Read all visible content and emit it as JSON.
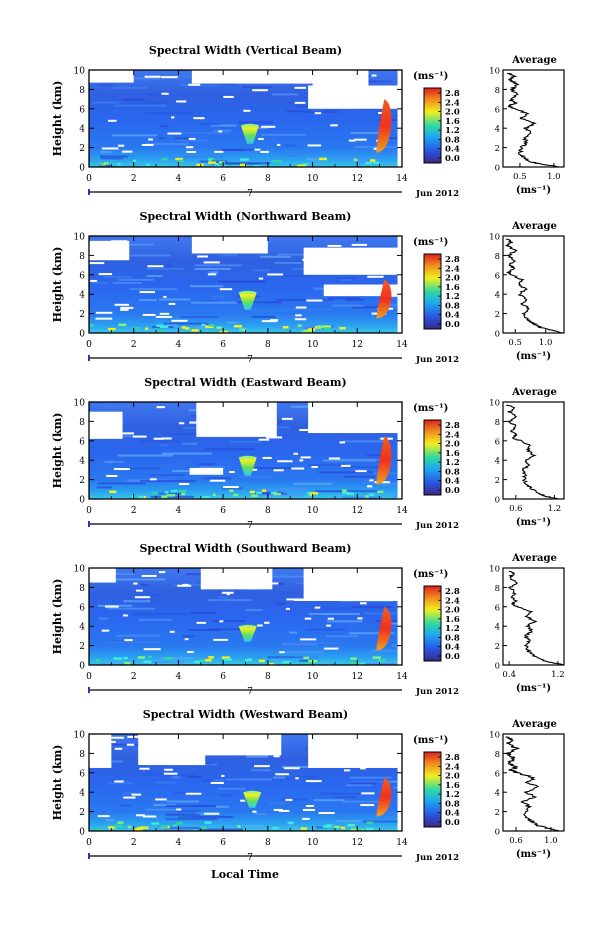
{
  "figure": {
    "xlabel": "Local Time",
    "date_label": "Jun 2012",
    "day_label": "7",
    "avg_title": "Average",
    "unit_label": "(ms⁻¹)",
    "ylabel": "Height (km)"
  },
  "chart_data": [
    {
      "type": "heatmap",
      "title": "Spectral Width (Vertical Beam)",
      "xlabel": "Local Time",
      "ylabel": "Height (km)",
      "xlim": [
        0,
        14
      ],
      "ylim": [
        0,
        10
      ],
      "x_ticks": [
        "0",
        "2",
        "4",
        "6",
        "8",
        "10",
        "12",
        "14"
      ],
      "y_ticks": [
        "0",
        "2",
        "4",
        "6",
        "8",
        "10"
      ],
      "colorbar_ticks": [
        "0.0",
        "0.4",
        "0.8",
        "1.2",
        "1.6",
        "2.0",
        "2.4",
        "2.8"
      ],
      "colorbar_unit": "(ms⁻¹)",
      "colormap": [
        "#3a2a80",
        "#2a50e0",
        "#20a8f0",
        "#30d8a0",
        "#f0f020",
        "#f09020",
        "#e02020"
      ],
      "features": {
        "plume_center_x": 7.2,
        "plume_top_km": 4.3,
        "edge_plume_x": 13.3,
        "edge_plume_top_km": 7.0,
        "gaps": [
          [
            0,
            2.0,
            8.7,
            10
          ],
          [
            4.6,
            10.3,
            8.6,
            10
          ],
          [
            9.8,
            14,
            6.0,
            8.4
          ],
          [
            10.0,
            12.5,
            7.3,
            10
          ]
        ]
      },
      "average": {
        "title": "Average",
        "xlabel": "(ms⁻¹)",
        "x_ticks": [
          "0.5",
          "1.0"
        ],
        "xlim": [
          0.25,
          1.15
        ],
        "y_ticks": [
          "0",
          "2",
          "4",
          "6",
          "8",
          "10"
        ],
        "height_km": [
          0.0,
          0.3,
          0.6,
          1.0,
          1.4,
          2.0,
          2.5,
          3.0,
          3.5,
          4.0,
          4.5,
          5.0,
          5.5,
          6.0,
          6.3,
          6.6,
          7.0,
          7.5,
          8.0,
          8.5,
          9.0,
          9.4,
          9.7
        ],
        "width": [
          1.1,
          0.8,
          0.63,
          0.55,
          0.5,
          0.52,
          0.6,
          0.57,
          0.66,
          0.58,
          0.72,
          0.52,
          0.62,
          0.42,
          0.33,
          0.44,
          0.36,
          0.46,
          0.38,
          0.47,
          0.35,
          0.42,
          0.32
        ]
      }
    },
    {
      "type": "heatmap",
      "title": "Spectral Width (Northward Beam)",
      "xlabel": "Local Time",
      "ylabel": "Height (km)",
      "xlim": [
        0,
        14
      ],
      "ylim": [
        0,
        10
      ],
      "x_ticks": [
        "0",
        "2",
        "4",
        "6",
        "8",
        "10",
        "12",
        "14"
      ],
      "y_ticks": [
        "0",
        "2",
        "4",
        "6",
        "8",
        "10"
      ],
      "colorbar_ticks": [
        "0.0",
        "0.4",
        "0.8",
        "1.2",
        "1.6",
        "2.0",
        "2.4",
        "2.8"
      ],
      "colorbar_unit": "(ms⁻¹)",
      "colormap": [
        "#3a2a80",
        "#2a50e0",
        "#20a8f0",
        "#30d8a0",
        "#f0f020",
        "#f09020",
        "#e02020"
      ],
      "features": {
        "plume_center_x": 7.1,
        "plume_top_km": 4.2,
        "edge_plume_x": 13.3,
        "edge_plume_top_km": 5.5,
        "gaps": [
          [
            0,
            1.8,
            7.5,
            9.5
          ],
          [
            4.6,
            8.0,
            8.2,
            10
          ],
          [
            9.6,
            14,
            6.0,
            8.8
          ],
          [
            10.5,
            14,
            3.8,
            5.0
          ]
        ]
      },
      "average": {
        "title": "Average",
        "xlabel": "(ms⁻¹)",
        "x_ticks": [
          "0.5",
          "1.0"
        ],
        "xlim": [
          0.3,
          1.3
        ],
        "y_ticks": [
          "0",
          "2",
          "4",
          "6",
          "8",
          "10"
        ],
        "height_km": [
          0.0,
          0.3,
          0.6,
          1.0,
          1.4,
          2.0,
          2.5,
          3.0,
          3.5,
          4.0,
          4.5,
          5.0,
          5.5,
          6.0,
          6.3,
          6.6,
          7.0,
          7.5,
          8.0,
          8.5,
          9.0,
          9.4,
          9.7
        ],
        "width": [
          1.3,
          1.1,
          0.9,
          0.8,
          0.7,
          0.65,
          0.72,
          0.62,
          0.7,
          0.56,
          0.68,
          0.55,
          0.6,
          0.45,
          0.38,
          0.5,
          0.4,
          0.48,
          0.4,
          0.5,
          0.38,
          0.45,
          0.35
        ]
      }
    },
    {
      "type": "heatmap",
      "title": "Spectral Width (Eastward Beam)",
      "xlabel": "Local Time",
      "ylabel": "Height (km)",
      "xlim": [
        0,
        14
      ],
      "ylim": [
        0,
        10
      ],
      "x_ticks": [
        "0",
        "2",
        "4",
        "6",
        "8",
        "10",
        "12",
        "14"
      ],
      "y_ticks": [
        "0",
        "2",
        "4",
        "6",
        "8",
        "10"
      ],
      "colorbar_ticks": [
        "0.0",
        "0.4",
        "0.8",
        "1.2",
        "1.6",
        "2.0",
        "2.4",
        "2.8"
      ],
      "colorbar_unit": "(ms⁻¹)",
      "colormap": [
        "#3a2a80",
        "#2a50e0",
        "#20a8f0",
        "#30d8a0",
        "#f0f020",
        "#f09020",
        "#e02020"
      ],
      "features": {
        "plume_center_x": 7.1,
        "plume_top_km": 4.3,
        "edge_plume_x": 13.3,
        "edge_plume_top_km": 6.5,
        "gaps": [
          [
            0,
            1.5,
            6.2,
            9.0
          ],
          [
            4.8,
            8.4,
            6.4,
            10
          ],
          [
            9.8,
            14,
            6.8,
            10
          ],
          [
            4.5,
            6.0,
            2.5,
            3.2
          ]
        ]
      },
      "average": {
        "title": "Average",
        "xlabel": "(ms⁻¹)",
        "x_ticks": [
          "0.6",
          "1.2"
        ],
        "xlim": [
          0.4,
          1.35
        ],
        "y_ticks": [
          "0",
          "2",
          "4",
          "6",
          "8",
          "10"
        ],
        "height_km": [
          0.0,
          0.3,
          0.6,
          1.0,
          1.4,
          2.0,
          2.5,
          3.0,
          3.5,
          4.0,
          4.5,
          5.0,
          5.5,
          6.0,
          6.3,
          6.6,
          7.0,
          7.5,
          8.0,
          8.5,
          9.0,
          9.4,
          9.7
        ],
        "width": [
          1.25,
          1.05,
          0.95,
          0.85,
          0.78,
          0.72,
          0.75,
          0.7,
          0.8,
          0.75,
          0.88,
          0.8,
          0.82,
          0.68,
          0.55,
          0.6,
          0.52,
          0.6,
          0.5,
          0.62,
          0.5,
          0.56,
          0.48
        ]
      }
    },
    {
      "type": "heatmap",
      "title": "Spectral Width (Southward Beam)",
      "xlabel": "Local Time",
      "ylabel": "Height (km)",
      "xlim": [
        0,
        14
      ],
      "ylim": [
        0,
        10
      ],
      "x_ticks": [
        "0",
        "2",
        "4",
        "6",
        "8",
        "10",
        "12",
        "14"
      ],
      "y_ticks": [
        "0",
        "2",
        "4",
        "6",
        "8",
        "10"
      ],
      "colorbar_ticks": [
        "0.0",
        "0.4",
        "0.8",
        "1.2",
        "1.6",
        "2.0",
        "2.4",
        "2.8"
      ],
      "colorbar_unit": "(ms⁻¹)",
      "colormap": [
        "#3a2a80",
        "#2a50e0",
        "#20a8f0",
        "#30d8a0",
        "#f0f020",
        "#f09020",
        "#e02020"
      ],
      "features": {
        "plume_center_x": 7.1,
        "plume_top_km": 4.0,
        "edge_plume_x": 13.3,
        "edge_plume_top_km": 6.0,
        "gaps": [
          [
            5.0,
            8.2,
            7.8,
            10
          ],
          [
            9.6,
            14,
            6.6,
            10
          ],
          [
            0,
            1.2,
            8.5,
            10
          ]
        ]
      },
      "average": {
        "title": "Average",
        "xlabel": "(ms⁻¹)",
        "x_ticks": [
          "0.4",
          "1.2"
        ],
        "xlim": [
          0.3,
          1.3
        ],
        "y_ticks": [
          "0",
          "2",
          "4",
          "6",
          "8",
          "10"
        ],
        "height_km": [
          0.0,
          0.3,
          0.6,
          1.0,
          1.4,
          2.0,
          2.5,
          3.0,
          3.5,
          4.0,
          4.5,
          5.0,
          5.5,
          6.0,
          6.3,
          6.6,
          7.0,
          7.5,
          8.0,
          8.5,
          9.0,
          9.4,
          9.7
        ],
        "width": [
          1.3,
          1.05,
          0.9,
          0.8,
          0.72,
          0.68,
          0.74,
          0.66,
          0.78,
          0.7,
          0.82,
          0.68,
          0.74,
          0.55,
          0.45,
          0.52,
          0.44,
          0.5,
          0.42,
          0.52,
          0.4,
          0.48,
          0.4
        ]
      }
    },
    {
      "type": "heatmap",
      "title": "Spectral Width (Westward Beam)",
      "xlabel": "Local Time",
      "ylabel": "Height (km)",
      "xlim": [
        0,
        14
      ],
      "ylim": [
        0,
        10
      ],
      "x_ticks": [
        "0",
        "2",
        "4",
        "6",
        "8",
        "10",
        "12",
        "14"
      ],
      "y_ticks": [
        "0",
        "2",
        "4",
        "6",
        "8",
        "10"
      ],
      "colorbar_ticks": [
        "0.0",
        "0.4",
        "0.8",
        "1.2",
        "1.6",
        "2.0",
        "2.4",
        "2.8"
      ],
      "colorbar_unit": "(ms⁻¹)",
      "colormap": [
        "#3a2a80",
        "#2a50e0",
        "#20a8f0",
        "#30d8a0",
        "#f0f020",
        "#f09020",
        "#e02020"
      ],
      "features": {
        "plume_center_x": 7.3,
        "plume_top_km": 4.0,
        "edge_plume_x": 13.3,
        "edge_plume_top_km": 5.5,
        "gaps": [
          [
            0,
            1.0,
            6.5,
            10
          ],
          [
            5.0,
            8.6,
            7.8,
            10
          ],
          [
            9.8,
            14,
            6.5,
            10
          ],
          [
            2.2,
            5.2,
            6.8,
            10
          ]
        ]
      },
      "average": {
        "title": "Average",
        "xlabel": "(ms⁻¹)",
        "x_ticks": [
          "0.6",
          "1.0"
        ],
        "xlim": [
          0.45,
          1.15
        ],
        "y_ticks": [
          "0",
          "2",
          "4",
          "6",
          "8",
          "10"
        ],
        "height_km": [
          0.0,
          0.3,
          0.6,
          1.0,
          1.4,
          2.0,
          2.5,
          3.0,
          3.5,
          4.0,
          4.5,
          5.0,
          5.5,
          6.0,
          6.3,
          6.6,
          7.0,
          7.5,
          8.0,
          8.5,
          9.0,
          9.4,
          9.7
        ],
        "width": [
          1.1,
          0.95,
          0.85,
          0.78,
          0.72,
          0.7,
          0.76,
          0.68,
          0.8,
          0.72,
          0.86,
          0.74,
          0.8,
          0.62,
          0.54,
          0.6,
          0.52,
          0.58,
          0.5,
          0.6,
          0.5,
          0.56,
          0.48
        ]
      }
    }
  ]
}
